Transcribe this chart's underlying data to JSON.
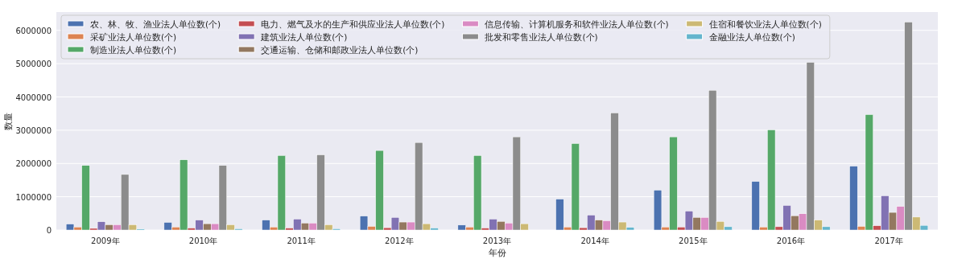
{
  "chart_data": {
    "type": "bar",
    "xlabel": "年份",
    "ylabel": "数量",
    "categories": [
      "2009年",
      "2010年",
      "2011年",
      "2012年",
      "2013年",
      "2014年",
      "2015年",
      "2016年",
      "2017年"
    ],
    "ylim": [
      0,
      6550000
    ],
    "yticks": [
      0,
      1000000,
      2000000,
      3000000,
      4000000,
      5000000,
      6000000
    ],
    "grid": "y",
    "legend": "top left",
    "series": [
      {
        "name": "农、林、牧、渔业法人单位数(个)",
        "color": "#4c72b0",
        "values": [
          180000,
          230000,
          300000,
          420000,
          150000,
          930000,
          1200000,
          1460000,
          1920000
        ]
      },
      {
        "name": "采矿业法人单位数(个)",
        "color": "#dd8452",
        "values": [
          90000,
          90000,
          90000,
          110000,
          90000,
          90000,
          90000,
          90000,
          110000
        ]
      },
      {
        "name": "制造业法人单位数(个)",
        "color": "#55a868",
        "values": [
          1940000,
          2110000,
          2240000,
          2390000,
          2240000,
          2600000,
          2800000,
          3010000,
          3470000
        ]
      },
      {
        "name": "电力、燃气及水的生产和供应业法人单位数(个)",
        "color": "#c44e52",
        "values": [
          50000,
          60000,
          60000,
          70000,
          60000,
          70000,
          90000,
          100000,
          130000
        ]
      },
      {
        "name": "建筑业法人单位数(个)",
        "color": "#8172b3",
        "values": [
          250000,
          300000,
          330000,
          380000,
          330000,
          450000,
          570000,
          740000,
          1030000
        ]
      },
      {
        "name": "交通运输、仓储和邮政业法人单位数(个)",
        "color": "#937860",
        "values": [
          160000,
          190000,
          210000,
          240000,
          260000,
          300000,
          380000,
          430000,
          530000
        ]
      },
      {
        "name": "信息传输、计算机服务和软件业法人单位数(个)",
        "color": "#da8bc3",
        "values": [
          160000,
          190000,
          210000,
          240000,
          210000,
          280000,
          380000,
          490000,
          710000
        ]
      },
      {
        "name": "批发和零售业法人单位数(个)",
        "color": "#8c8c8c",
        "values": [
          1670000,
          1940000,
          2260000,
          2630000,
          2800000,
          3520000,
          4200000,
          5040000,
          6250000
        ]
      },
      {
        "name": "住宿和餐饮业法人单位数(个)",
        "color": "#ccb974",
        "values": [
          160000,
          160000,
          160000,
          190000,
          190000,
          240000,
          260000,
          300000,
          390000
        ]
      },
      {
        "name": "金融业法人单位数(个)",
        "color": "#64b5cd",
        "values": [
          30000,
          40000,
          40000,
          60000,
          null,
          80000,
          100000,
          100000,
          140000
        ]
      }
    ]
  }
}
